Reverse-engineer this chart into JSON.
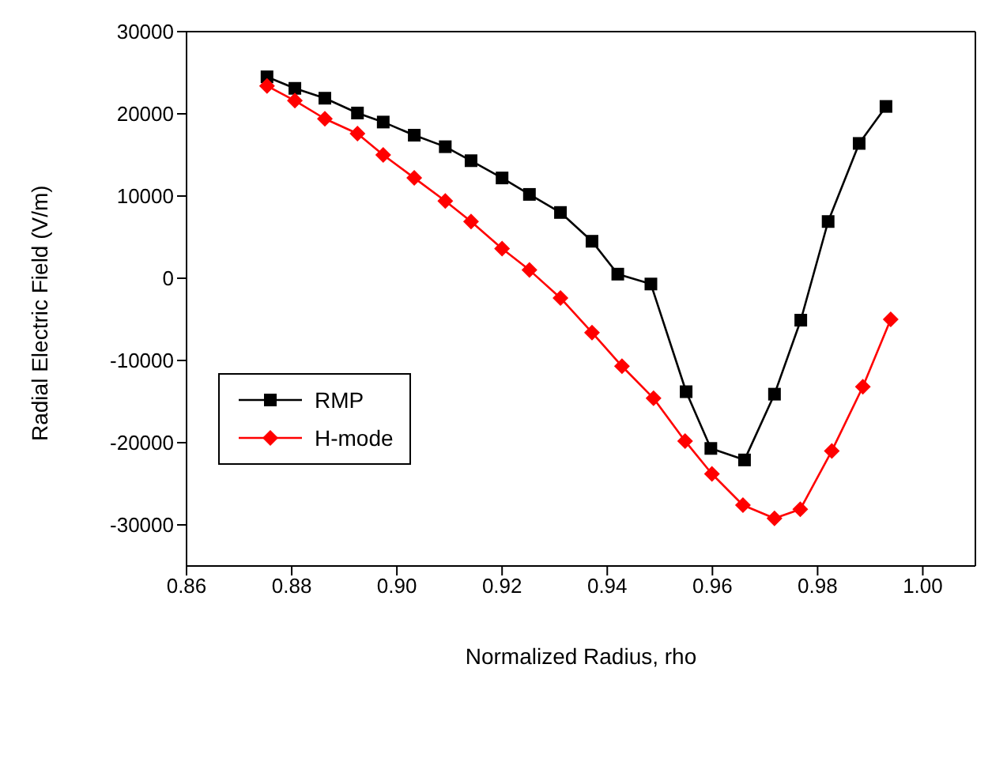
{
  "chart_data": {
    "type": "line",
    "xlabel": "Normalized Radius, rho",
    "ylabel": "Radial Electric Field (V/m)",
    "xlim": [
      0.86,
      1.01
    ],
    "xticks": [
      {
        "value": 0.86,
        "label": "0.86"
      },
      {
        "value": 0.88,
        "label": "0.88"
      },
      {
        "value": 0.9,
        "label": "0.90"
      },
      {
        "value": 0.92,
        "label": "0.92"
      },
      {
        "value": 0.94,
        "label": "0.94"
      },
      {
        "value": 0.96,
        "label": "0.96"
      },
      {
        "value": 0.98,
        "label": "0.98"
      },
      {
        "value": 1,
        "label": "1.00"
      }
    ],
    "ylim": [
      -35000,
      30000
    ],
    "yticks": [
      -30000,
      -20000,
      -10000,
      0,
      10000,
      20000,
      30000
    ],
    "grid": false,
    "legend": "left",
    "line_style": "solid",
    "series": [
      {
        "name": "RMP",
        "color": "#000000",
        "marker": "square",
        "x": [
          0.8753,
          0.8806,
          0.8863,
          0.8925,
          0.8974,
          0.9033,
          0.9092,
          0.9141,
          0.92,
          0.9252,
          0.9311,
          0.9371,
          0.942,
          0.9483,
          0.955,
          0.9597,
          0.9661,
          0.9718,
          0.9768,
          0.982,
          0.9879,
          0.993
        ],
        "values": [
          24500,
          23100,
          21900,
          20100,
          19000,
          17400,
          16000,
          14300,
          12200,
          10200,
          8000,
          4500,
          500,
          -700,
          -13800,
          -20700,
          -22100,
          -14100,
          -5100,
          6900,
          16400,
          20900
        ]
      },
      {
        "name": "H-mode",
        "color": "#ff0000",
        "marker": "diamond",
        "x": [
          0.8753,
          0.8806,
          0.8863,
          0.8925,
          0.8974,
          0.9033,
          0.9092,
          0.9141,
          0.92,
          0.9252,
          0.9311,
          0.9371,
          0.9428,
          0.9488,
          0.9548,
          0.9599,
          0.9658,
          0.9718,
          0.9767,
          0.9827,
          0.9886,
          0.9939
        ],
        "values": [
          23400,
          21600,
          19400,
          17600,
          15000,
          12200,
          9400,
          6900,
          3600,
          1000,
          -2400,
          -6600,
          -10700,
          -14600,
          -19800,
          -23800,
          -27600,
          -29200,
          -28100,
          -21000,
          -13200,
          -5000
        ]
      }
    ]
  }
}
